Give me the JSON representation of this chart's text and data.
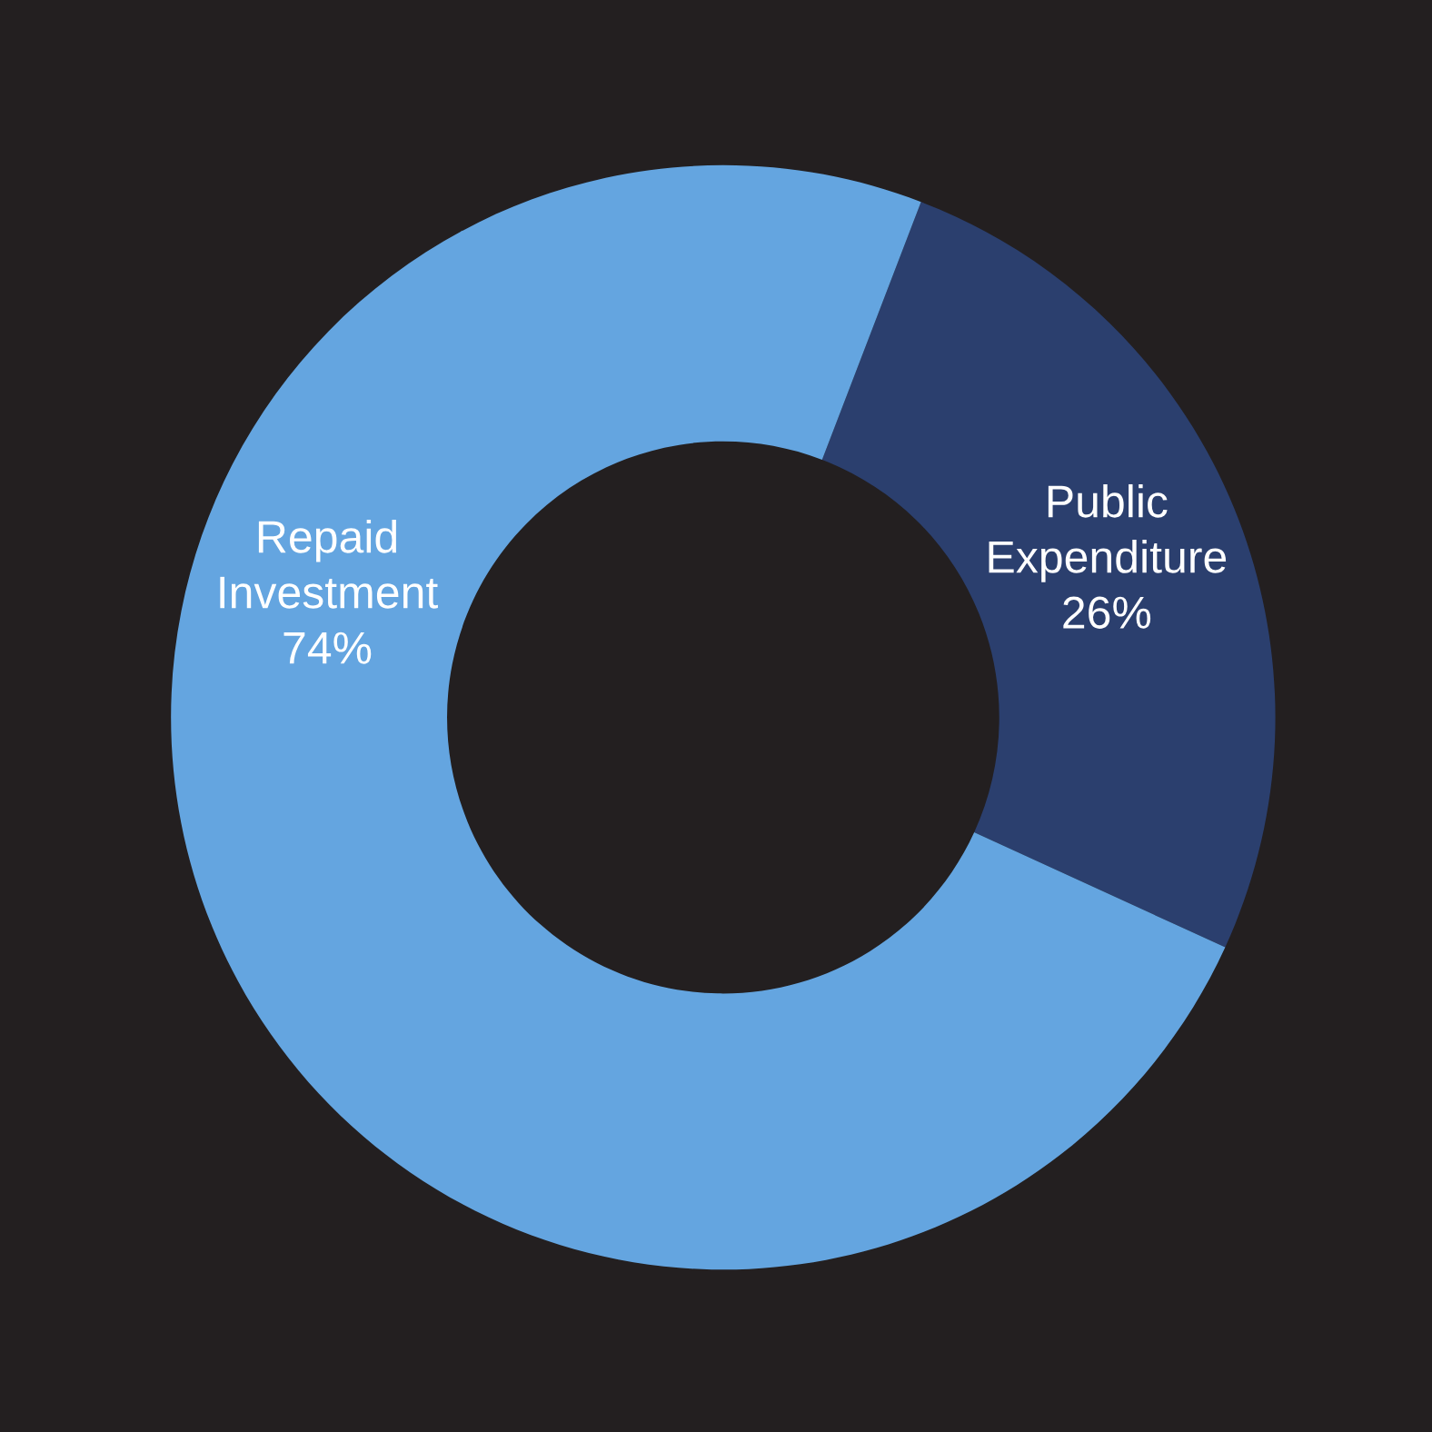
{
  "chart_data": {
    "type": "donut",
    "categories": [
      "Public Expenditure",
      "Repaid Investment"
    ],
    "values": [
      26,
      74
    ],
    "colors": [
      "#2b3f6e",
      "#64a5e0"
    ],
    "value_labels": [
      "26%",
      "74%"
    ],
    "legend": false
  }
}
